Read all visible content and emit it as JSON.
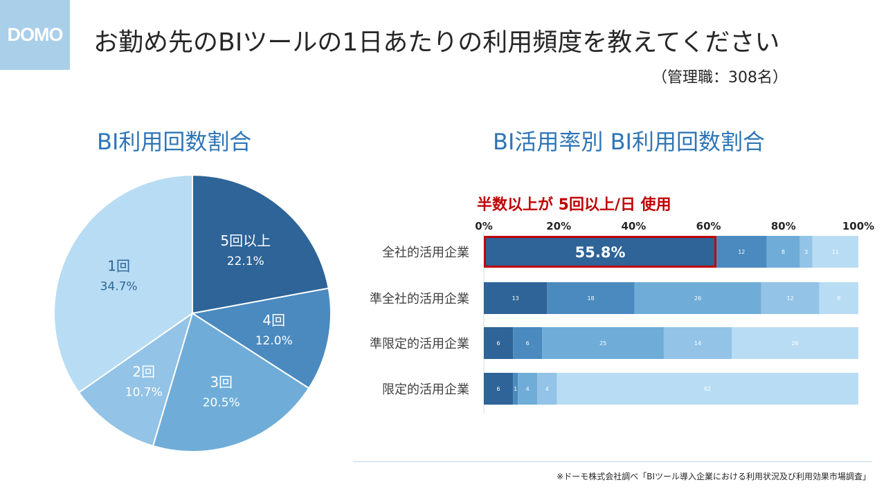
{
  "logo": {
    "text": "DOMO"
  },
  "header": {
    "title": "お勤め先のBIツールの1日あたりの利用頻度を教えてください",
    "subtitle": "（管理職：308名）"
  },
  "colors": {
    "c1": "#2e6497",
    "c2": "#4a8abf",
    "c3": "#6fadd8",
    "c4": "#93c3e6",
    "c5": "#b8dcf3",
    "heading": "#2e75b6",
    "callout": "#c00000"
  },
  "chart_data": [
    {
      "type": "pie",
      "title": "BI利用回数割合",
      "slices": [
        {
          "label": "5回以上",
          "value": 22.1,
          "display": "22.1%"
        },
        {
          "label": "4回",
          "value": 12.0,
          "display": "12.0%"
        },
        {
          "label": "3回",
          "value": 20.5,
          "display": "20.5%"
        },
        {
          "label": "2回",
          "value": 10.7,
          "display": "10.7%"
        },
        {
          "label": "1回",
          "value": 34.7,
          "display": "34.7%"
        }
      ]
    },
    {
      "type": "bar",
      "orientation": "horizontal",
      "stacked": true,
      "title": "BI活用率別 BI利用回数割合",
      "xlim": [
        0,
        100
      ],
      "xticks": [
        "0%",
        "20%",
        "40%",
        "60%",
        "80%",
        "100%"
      ],
      "categories": [
        "全社的活用企業",
        "準全社的活用企業",
        "準限定的活用企業",
        "限定的活用企業"
      ],
      "series": [
        {
          "values": [
            55.8,
            13,
            6,
            6
          ]
        },
        {
          "values": [
            12,
            18,
            6,
            1
          ]
        },
        {
          "values": [
            8,
            26,
            25,
            4
          ]
        },
        {
          "values": [
            3,
            12,
            14,
            4
          ]
        },
        {
          "values": [
            11,
            8,
            26,
            62
          ]
        }
      ],
      "data_labels": [
        [
          "55.8%",
          "12",
          "8",
          "3",
          "11"
        ],
        [
          "13",
          "18",
          "26",
          "12",
          "8"
        ],
        [
          "6",
          "6",
          "25",
          "14",
          "26"
        ],
        [
          "6",
          "1",
          "4",
          "4",
          "62"
        ]
      ],
      "callout": "半数以上が 5回以上/日 使用",
      "highlighted_segment": "55.8%"
    }
  ],
  "footnote": "※ドーモ株式会社調べ「BIツール導入企業における利用状況及び利用効果市場調査」"
}
